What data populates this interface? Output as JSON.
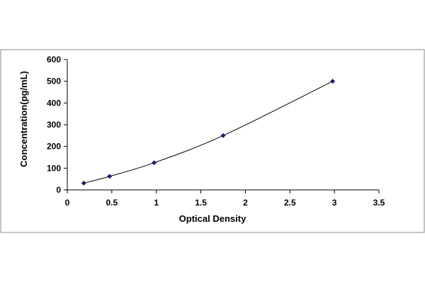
{
  "chart_data": {
    "type": "scatter",
    "title": "",
    "xlabel": "Optical Density",
    "ylabel": "Concentration(pg/mL)",
    "xlim": [
      0,
      3.5
    ],
    "ylim": [
      0,
      600
    ],
    "x_ticks": [
      "0",
      "0.5",
      "1",
      "1.5",
      "2",
      "2.5",
      "3",
      "3.5"
    ],
    "y_ticks": [
      "0",
      "100",
      "200",
      "300",
      "400",
      "500",
      "600"
    ],
    "grid": false,
    "legend": "none",
    "series": [
      {
        "x": [
          0.185,
          0.475,
          0.975,
          1.75,
          2.98
        ],
        "y": [
          31.25,
          62.5,
          125,
          250,
          500
        ],
        "marker": "diamond",
        "fit": "smooth-curve"
      }
    ],
    "colors": {
      "marker": "#1a1a6e",
      "line": "#000000",
      "frame": "#888888"
    }
  }
}
